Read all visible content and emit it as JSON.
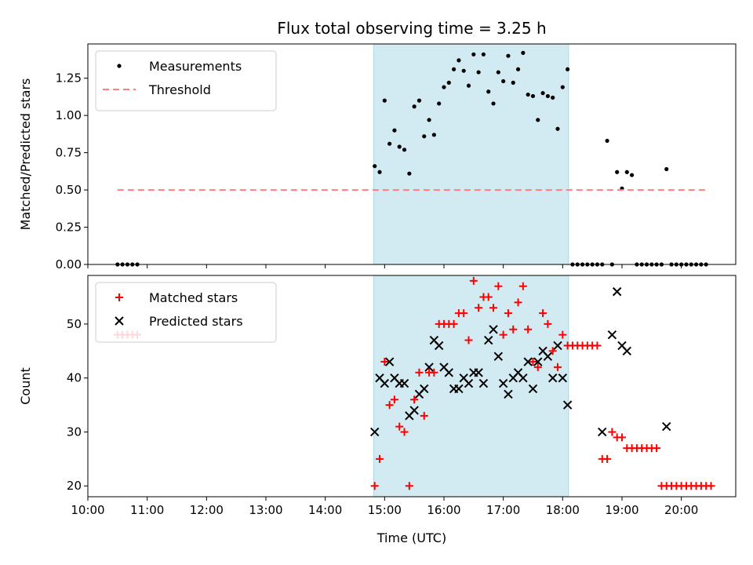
{
  "chart_data": {
    "type": "scatter",
    "title": "Flux total observing time = 3.25 h",
    "xlabel": "Time (UTC)",
    "x_unit": "hours UTC",
    "xlim": [
      "10:00",
      "20:55"
    ],
    "x_ticks": [
      "10:00",
      "11:00",
      "12:00",
      "13:00",
      "14:00",
      "15:00",
      "16:00",
      "17:00",
      "18:00",
      "19:00",
      "20:00"
    ],
    "shaded_span": [
      "14:49",
      "18:06"
    ],
    "shade_color": "#add8e6",
    "panels": [
      {
        "ylabel": "Matched/Predicted stars",
        "ylim": [
          0,
          1.48
        ],
        "y_ticks": [
          "0.00",
          "0.25",
          "0.50",
          "0.75",
          "1.00",
          "1.25"
        ],
        "legend_position": "upper-left",
        "series": [
          {
            "name": "Measurements",
            "marker": "dot",
            "color": "#000000",
            "points": [
              [
                "10:30",
                0
              ],
              [
                "10:35",
                0
              ],
              [
                "10:40",
                0
              ],
              [
                "10:45",
                0
              ],
              [
                "10:50",
                0
              ],
              [
                "14:50",
                0.66
              ],
              [
                "14:55",
                0.62
              ],
              [
                "15:00",
                1.1
              ],
              [
                "15:05",
                0.81
              ],
              [
                "15:10",
                0.9
              ],
              [
                "15:15",
                0.79
              ],
              [
                "15:20",
                0.77
              ],
              [
                "15:25",
                0.61
              ],
              [
                "15:30",
                1.06
              ],
              [
                "15:35",
                1.1
              ],
              [
                "15:40",
                0.86
              ],
              [
                "15:45",
                0.97
              ],
              [
                "15:50",
                0.87
              ],
              [
                "15:55",
                1.08
              ],
              [
                "16:00",
                1.19
              ],
              [
                "16:05",
                1.22
              ],
              [
                "16:10",
                1.31
              ],
              [
                "16:15",
                1.37
              ],
              [
                "16:20",
                1.3
              ],
              [
                "16:25",
                1.2
              ],
              [
                "16:30",
                1.41
              ],
              [
                "16:35",
                1.29
              ],
              [
                "16:40",
                1.41
              ],
              [
                "16:45",
                1.16
              ],
              [
                "16:50",
                1.08
              ],
              [
                "16:55",
                1.29
              ],
              [
                "17:00",
                1.23
              ],
              [
                "17:05",
                1.4
              ],
              [
                "17:10",
                1.22
              ],
              [
                "17:15",
                1.31
              ],
              [
                "17:20",
                1.42
              ],
              [
                "17:25",
                1.14
              ],
              [
                "17:30",
                1.13
              ],
              [
                "17:35",
                0.97
              ],
              [
                "17:40",
                1.15
              ],
              [
                "17:45",
                1.13
              ],
              [
                "17:50",
                1.12
              ],
              [
                "17:55",
                0.91
              ],
              [
                "18:00",
                1.19
              ],
              [
                "18:05",
                1.31
              ],
              [
                "18:10",
                0
              ],
              [
                "18:15",
                0
              ],
              [
                "18:20",
                0
              ],
              [
                "18:25",
                0
              ],
              [
                "18:30",
                0
              ],
              [
                "18:35",
                0
              ],
              [
                "18:40",
                0
              ],
              [
                "18:45",
                0.83
              ],
              [
                "18:50",
                0
              ],
              [
                "18:55",
                0.62
              ],
              [
                "19:00",
                0.51
              ],
              [
                "19:05",
                0.62
              ],
              [
                "19:10",
                0.6
              ],
              [
                "19:15",
                0
              ],
              [
                "19:20",
                0
              ],
              [
                "19:25",
                0
              ],
              [
                "19:30",
                0
              ],
              [
                "19:35",
                0
              ],
              [
                "19:40",
                0
              ],
              [
                "19:45",
                0.64
              ],
              [
                "19:50",
                0
              ],
              [
                "19:55",
                0
              ],
              [
                "20:00",
                0
              ],
              [
                "20:05",
                0
              ],
              [
                "20:10",
                0
              ],
              [
                "20:15",
                0
              ],
              [
                "20:20",
                0
              ],
              [
                "20:25",
                0
              ]
            ]
          },
          {
            "name": "Threshold",
            "marker": "dashed-line",
            "color": "#ff7f7f",
            "points": [
              [
                "10:30",
                0.5
              ],
              [
                "20:25",
                0.5
              ]
            ]
          }
        ]
      },
      {
        "ylabel": "Count",
        "ylim": [
          18,
          59
        ],
        "y_ticks": [
          "20",
          "30",
          "40",
          "50"
        ],
        "legend_position": "upper-left",
        "series": [
          {
            "name": "Matched stars",
            "marker": "plus",
            "color": "#ff0000",
            "points": [
              [
                "10:30",
                48
              ],
              [
                "10:35",
                48
              ],
              [
                "10:40",
                48
              ],
              [
                "10:45",
                48
              ],
              [
                "10:50",
                48
              ],
              [
                "14:50",
                20
              ],
              [
                "14:55",
                25
              ],
              [
                "15:00",
                43
              ],
              [
                "15:05",
                35
              ],
              [
                "15:10",
                36
              ],
              [
                "15:15",
                31
              ],
              [
                "15:20",
                30
              ],
              [
                "15:25",
                20
              ],
              [
                "15:30",
                36
              ],
              [
                "15:35",
                41
              ],
              [
                "15:40",
                33
              ],
              [
                "15:45",
                41
              ],
              [
                "15:50",
                41
              ],
              [
                "15:55",
                50
              ],
              [
                "16:00",
                50
              ],
              [
                "16:05",
                50
              ],
              [
                "16:10",
                50
              ],
              [
                "16:15",
                52
              ],
              [
                "16:20",
                52
              ],
              [
                "16:25",
                47
              ],
              [
                "16:30",
                58
              ],
              [
                "16:35",
                53
              ],
              [
                "16:40",
                55
              ],
              [
                "16:45",
                55
              ],
              [
                "16:50",
                53
              ],
              [
                "16:55",
                57
              ],
              [
                "17:00",
                48
              ],
              [
                "17:05",
                52
              ],
              [
                "17:10",
                49
              ],
              [
                "17:15",
                54
              ],
              [
                "17:20",
                57
              ],
              [
                "17:25",
                49
              ],
              [
                "17:30",
                43
              ],
              [
                "17:35",
                42
              ],
              [
                "17:40",
                52
              ],
              [
                "17:45",
                50
              ],
              [
                "17:50",
                45
              ],
              [
                "17:55",
                42
              ],
              [
                "18:00",
                48
              ],
              [
                "18:05",
                46
              ],
              [
                "18:10",
                46
              ],
              [
                "18:15",
                46
              ],
              [
                "18:20",
                46
              ],
              [
                "18:25",
                46
              ],
              [
                "18:30",
                46
              ],
              [
                "18:35",
                46
              ],
              [
                "18:40",
                25
              ],
              [
                "18:45",
                25
              ],
              [
                "18:50",
                30
              ],
              [
                "18:55",
                29
              ],
              [
                "19:00",
                29
              ],
              [
                "19:05",
                27
              ],
              [
                "19:10",
                27
              ],
              [
                "19:15",
                27
              ],
              [
                "19:20",
                27
              ],
              [
                "19:25",
                27
              ],
              [
                "19:30",
                27
              ],
              [
                "19:35",
                27
              ],
              [
                "19:40",
                20
              ],
              [
                "19:45",
                20
              ],
              [
                "19:50",
                20
              ],
              [
                "19:55",
                20
              ],
              [
                "20:00",
                20
              ],
              [
                "20:05",
                20
              ],
              [
                "20:10",
                20
              ],
              [
                "20:15",
                20
              ],
              [
                "20:20",
                20
              ],
              [
                "20:25",
                20
              ],
              [
                "20:30",
                20
              ]
            ]
          },
          {
            "name": "Predicted stars",
            "marker": "x",
            "color": "#000000",
            "points": [
              [
                "14:50",
                30
              ],
              [
                "14:55",
                40
              ],
              [
                "15:00",
                39
              ],
              [
                "15:05",
                43
              ],
              [
                "15:10",
                40
              ],
              [
                "15:15",
                39
              ],
              [
                "15:20",
                39
              ],
              [
                "15:25",
                33
              ],
              [
                "15:30",
                34
              ],
              [
                "15:35",
                37
              ],
              [
                "15:40",
                38
              ],
              [
                "15:45",
                42
              ],
              [
                "15:50",
                47
              ],
              [
                "15:55",
                46
              ],
              [
                "16:00",
                42
              ],
              [
                "16:05",
                41
              ],
              [
                "16:10",
                38
              ],
              [
                "16:15",
                38
              ],
              [
                "16:20",
                40
              ],
              [
                "16:25",
                39
              ],
              [
                "16:30",
                41
              ],
              [
                "16:35",
                41
              ],
              [
                "16:40",
                39
              ],
              [
                "16:45",
                47
              ],
              [
                "16:50",
                49
              ],
              [
                "16:55",
                44
              ],
              [
                "17:00",
                39
              ],
              [
                "17:05",
                37
              ],
              [
                "17:10",
                40
              ],
              [
                "17:15",
                41
              ],
              [
                "17:20",
                40
              ],
              [
                "17:25",
                43
              ],
              [
                "17:30",
                38
              ],
              [
                "17:35",
                43
              ],
              [
                "17:40",
                45
              ],
              [
                "17:45",
                44
              ],
              [
                "17:50",
                40
              ],
              [
                "17:55",
                46
              ],
              [
                "18:00",
                40
              ],
              [
                "18:05",
                35
              ],
              [
                "18:40",
                30
              ],
              [
                "18:50",
                48
              ],
              [
                "18:55",
                56
              ],
              [
                "19:00",
                46
              ],
              [
                "19:05",
                45
              ],
              [
                "19:45",
                31
              ]
            ]
          }
        ]
      }
    ]
  }
}
